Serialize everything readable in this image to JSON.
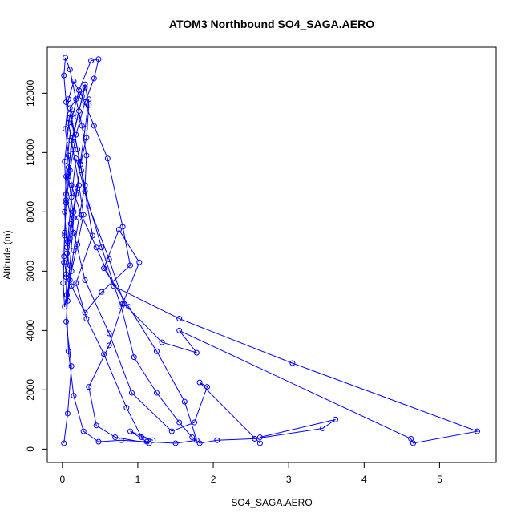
{
  "chart_data": {
    "type": "line",
    "title": "ATOM3 Northbound SO4_SAGA.AERO",
    "xlabel": "SO4_SAGA.AERO",
    "ylabel": "Altitude (m)",
    "xlim": [
      -0.2,
      5.75
    ],
    "ylim": [
      -450,
      13550
    ],
    "x_ticks": [
      0,
      1,
      2,
      3,
      4,
      5
    ],
    "y_ticks": [
      0,
      2000,
      4000,
      6000,
      8000,
      10000,
      12000
    ],
    "grid": false,
    "legend": "none",
    "colors": {
      "series": "#0000ff",
      "frame": "#000000"
    },
    "series": [
      {
        "markers": "open-circle",
        "x": [
          0.02,
          0.07,
          0.12,
          0.05,
          0.1,
          0.15,
          0.08,
          0.12,
          0.2,
          0.3,
          0.1,
          0.25,
          0.4,
          0.18,
          0.32,
          0.55,
          0.85,
          1.05,
          1.2,
          0.9,
          1.15,
          0.7,
          0.45,
          0.35,
          0.62,
          0.8,
          1.02,
          0.75,
          0.55,
          0.88,
          1.25,
          1.62,
          1.78,
          1.5,
          1.12,
          0.78,
          0.48,
          0.28,
          0.15,
          0.08,
          0.05,
          0.07,
          0.12,
          0.18,
          0.3,
          0.52,
          0.78,
          0.95,
          1.25,
          1.55,
          1.72,
          1.82,
          2.05,
          2.55,
          3.45,
          3.62,
          2.62,
          2.62,
          1.82,
          1.92,
          1.75,
          1.45,
          0.92,
          0.62,
          0.3,
          0.15,
          0.05,
          0.03,
          0.1,
          0.2,
          0.35,
          0.62,
          0.82,
          1.32,
          1.78,
          1.55,
          4.62,
          4.65,
          5.5,
          3.05,
          1.55,
          0.68,
          0.45,
          0.25,
          0.12,
          0.08,
          0.04,
          0.08,
          0.15,
          0.26,
          0.42,
          0.6,
          0.8,
          0.9,
          0.52,
          0.3,
          0.12,
          0.06,
          0.03,
          0.05,
          0.09,
          0.14,
          0.22,
          0.38,
          0.48,
          0.42,
          0.3,
          0.18,
          0.1,
          0.05,
          0.03,
          0.02,
          0.01,
          0.03,
          0.06,
          0.12,
          0.2,
          0.28,
          0.22,
          0.14,
          0.08,
          0.05,
          0.02,
          0.04,
          0.1,
          0.18,
          0.26,
          0.32,
          0.3,
          0.22,
          0.15,
          0.1,
          0.07,
          0.05,
          0.06,
          0.11,
          0.18,
          0.24,
          0.32,
          0.35,
          0.3,
          0.22,
          0.14,
          0.08,
          0.05,
          0.03,
          0.02,
          0.05,
          0.1,
          0.15,
          0.2,
          0.24,
          0.3,
          0.35
        ],
        "y": [
          200,
          1200,
          2800,
          4300,
          6200,
          7800,
          9200,
          10400,
          11200,
          12200,
          11500,
          9400,
          7200,
          5600,
          4400,
          3200,
          1400,
          400,
          300,
          600,
          200,
          400,
          800,
          2100,
          3500,
          4900,
          6300,
          7400,
          6100,
          4800,
          3300,
          1600,
          300,
          200,
          250,
          300,
          250,
          600,
          1800,
          3300,
          5200,
          7000,
          8500,
          9800,
          8700,
          6800,
          4800,
          3100,
          1900,
          900,
          400,
          200,
          300,
          350,
          700,
          1000,
          400,
          200,
          2250,
          2100,
          900,
          600,
          1900,
          3900,
          5700,
          7300,
          8600,
          9700,
          11300,
          10100,
          8200,
          6400,
          4900,
          3600,
          3250,
          4000,
          350,
          200,
          600,
          2900,
          4400,
          5500,
          6800,
          7900,
          8900,
          9900,
          10800,
          11800,
          12400,
          11900,
          10900,
          9800,
          7500,
          6200,
          5300,
          4600,
          5500,
          6800,
          8000,
          9200,
          10400,
          11300,
          12100,
          13100,
          13150,
          12500,
          11700,
          10600,
          9400,
          8300,
          7200,
          6300,
          5600,
          4800,
          5200,
          6000,
          6900,
          7900,
          8900,
          10100,
          11000,
          11700,
          12600,
          13200,
          12800,
          11800,
          10900,
          9900,
          8900,
          7800,
          6700,
          5700,
          5000,
          5800,
          6600,
          7600,
          8600,
          9600,
          10500,
          11600,
          12300,
          11400,
          10500,
          9500,
          8400,
          7300,
          6500,
          5900,
          7100,
          8000,
          8800,
          9700,
          10800,
          11800
        ]
      }
    ]
  }
}
